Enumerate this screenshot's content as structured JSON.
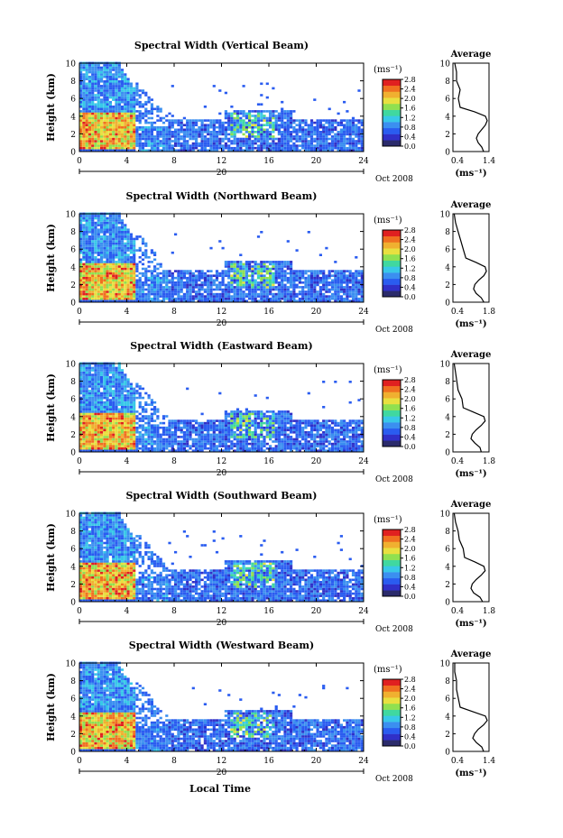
{
  "figure": {
    "xlabel": "Local Time",
    "date_label": "Oct 2008",
    "day_label": "20",
    "colorbar_unit": "(ms⁻¹)",
    "profile_title": "Average",
    "profile_xlabel": "(ms⁻¹)"
  },
  "colors": {
    "colormap": [
      "#2b2b6b",
      "#3030c8",
      "#2a5cf0",
      "#3b8ff0",
      "#38c8e8",
      "#40d8a0",
      "#90e050",
      "#e8e040",
      "#f0b030",
      "#f07020",
      "#e02020"
    ]
  },
  "chart_data": [
    {
      "type": "heatmap",
      "title": "Spectral Width (Vertical Beam)",
      "ylabel": "Height (km)",
      "xlim": [
        0,
        24
      ],
      "ylim": [
        0,
        10
      ],
      "xticks": [
        0,
        4,
        8,
        12,
        16,
        20,
        24
      ],
      "yticks": [
        0,
        2,
        4,
        6,
        8,
        10
      ],
      "colorbar": {
        "range": [
          0.0,
          2.8
        ],
        "ticks": [
          "0.0",
          "0.4",
          "0.8",
          "1.2",
          "1.6",
          "2.0",
          "2.4",
          "2.8"
        ]
      },
      "profile": {
        "xlim": [
          0.4,
          1.4
        ],
        "xticks": [
          "0.4",
          "1.4"
        ],
        "heights": [
          0,
          0.5,
          1,
          1.5,
          2,
          2.5,
          3,
          3.5,
          4,
          4.5,
          5,
          6,
          7,
          8,
          9,
          10
        ],
        "values": [
          1.25,
          1.2,
          1.1,
          1.05,
          1.1,
          1.2,
          1.3,
          1.35,
          1.3,
          1.0,
          0.6,
          0.55,
          0.6,
          0.5,
          0.5,
          0.45
        ]
      }
    },
    {
      "type": "heatmap",
      "title": "Spectral Width (Northward Beam)",
      "ylabel": "Height (km)",
      "xlim": [
        0,
        24
      ],
      "ylim": [
        0,
        10
      ],
      "xticks": [
        0,
        4,
        8,
        12,
        16,
        20,
        24
      ],
      "yticks": [
        0,
        2,
        4,
        6,
        8,
        10
      ],
      "colorbar": {
        "range": [
          0.0,
          2.8
        ],
        "ticks": [
          "0.0",
          "0.4",
          "0.8",
          "1.2",
          "1.6",
          "2.0",
          "2.4",
          "2.8"
        ]
      },
      "profile": {
        "xlim": [
          0.4,
          1.8
        ],
        "xticks": [
          "0.4",
          "1.8"
        ],
        "heights": [
          0,
          0.5,
          1,
          1.5,
          2,
          2.5,
          3,
          3.5,
          4,
          4.5,
          5,
          6,
          7,
          8,
          9,
          10
        ],
        "values": [
          1.6,
          1.5,
          1.3,
          1.2,
          1.25,
          1.4,
          1.6,
          1.7,
          1.65,
          1.3,
          0.9,
          0.8,
          0.7,
          0.6,
          0.5,
          0.45
        ]
      }
    },
    {
      "type": "heatmap",
      "title": "Spectral Width (Eastward Beam)",
      "ylabel": "Height (km)",
      "xlim": [
        0,
        24
      ],
      "ylim": [
        0,
        10
      ],
      "xticks": [
        0,
        4,
        8,
        12,
        16,
        20,
        24
      ],
      "yticks": [
        0,
        2,
        4,
        6,
        8,
        10
      ],
      "colorbar": {
        "range": [
          0.0,
          2.8
        ],
        "ticks": [
          "0.0",
          "0.4",
          "0.8",
          "1.2",
          "1.6",
          "2.0",
          "2.4",
          "2.8"
        ]
      },
      "profile": {
        "xlim": [
          0.4,
          1.8
        ],
        "xticks": [
          "0.4",
          "1.8"
        ],
        "heights": [
          0,
          0.5,
          1,
          1.5,
          2,
          2.5,
          3,
          3.5,
          4,
          4.5,
          5,
          6,
          7,
          8,
          9,
          10
        ],
        "values": [
          1.5,
          1.45,
          1.25,
          1.1,
          1.15,
          1.3,
          1.5,
          1.65,
          1.6,
          1.2,
          0.8,
          0.75,
          0.6,
          0.55,
          0.5,
          0.45
        ]
      }
    },
    {
      "type": "heatmap",
      "title": "Spectral Width (Southward Beam)",
      "ylabel": "Height (km)",
      "xlim": [
        0,
        24
      ],
      "ylim": [
        0,
        10
      ],
      "xticks": [
        0,
        4,
        8,
        12,
        16,
        20,
        24
      ],
      "yticks": [
        0,
        2,
        4,
        6,
        8,
        10
      ],
      "colorbar": {
        "range": [
          0.0,
          2.8
        ],
        "ticks": [
          "0.0",
          "0.4",
          "0.8",
          "1.2",
          "1.6",
          "2.0",
          "2.4",
          "2.8"
        ]
      },
      "profile": {
        "xlim": [
          0.4,
          1.8
        ],
        "xticks": [
          "0.4",
          "1.8"
        ],
        "heights": [
          0,
          0.5,
          1,
          1.5,
          2,
          2.5,
          3,
          3.5,
          4,
          4.5,
          5,
          6,
          7,
          8,
          9,
          10
        ],
        "values": [
          1.55,
          1.45,
          1.2,
          1.1,
          1.15,
          1.3,
          1.5,
          1.65,
          1.6,
          1.25,
          0.85,
          0.8,
          0.65,
          0.6,
          0.5,
          0.45
        ]
      }
    },
    {
      "type": "heatmap",
      "title": "Spectral Width (Westward Beam)",
      "ylabel": "Height (km)",
      "xlim": [
        0,
        24
      ],
      "ylim": [
        0,
        10
      ],
      "xticks": [
        0,
        4,
        8,
        12,
        16,
        20,
        24
      ],
      "yticks": [
        0,
        2,
        4,
        6,
        8,
        10
      ],
      "colorbar": {
        "range": [
          0.0,
          2.8
        ],
        "ticks": [
          "0.0",
          "0.4",
          "0.8",
          "1.2",
          "1.6",
          "2.0",
          "2.4",
          "2.8"
        ]
      },
      "profile": {
        "xlim": [
          0.4,
          1.4
        ],
        "xticks": [
          "0.4",
          "1.4"
        ],
        "heights": [
          0,
          0.5,
          1,
          1.5,
          2,
          2.5,
          3,
          3.5,
          4,
          4.5,
          5,
          6,
          7,
          8,
          9,
          10
        ],
        "values": [
          1.25,
          1.2,
          1.05,
          0.95,
          1.0,
          1.1,
          1.25,
          1.35,
          1.3,
          0.95,
          0.6,
          0.55,
          0.5,
          0.5,
          0.45,
          0.45
        ]
      }
    }
  ]
}
